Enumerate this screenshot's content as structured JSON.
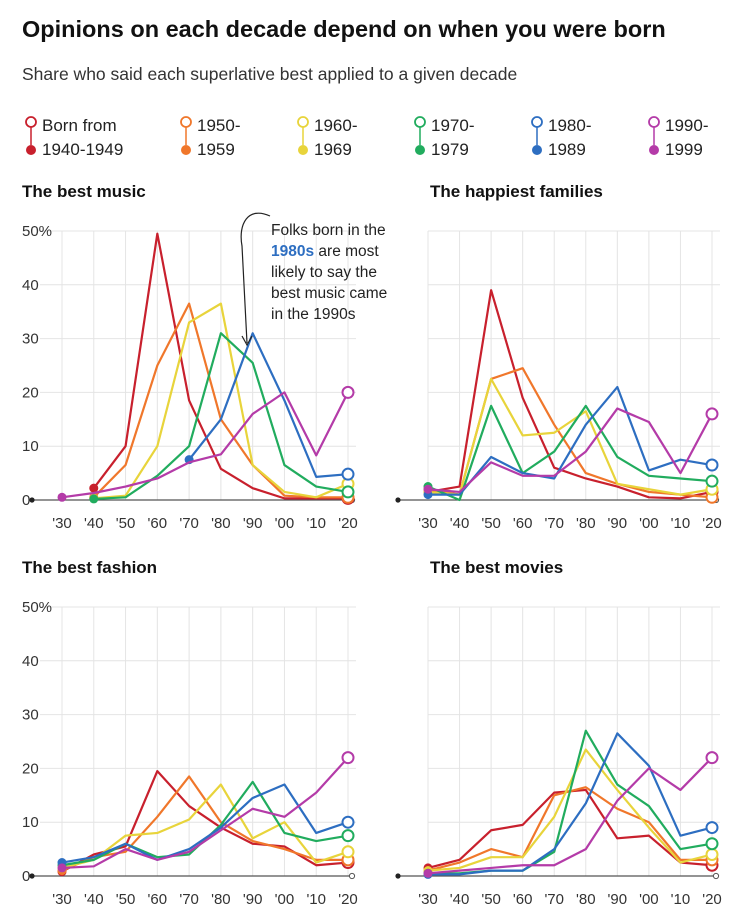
{
  "header": {
    "title": "Opinions on each decade depend on when you were born",
    "subtitle": "Share who said each superlative best applied to a given decade"
  },
  "legend": [
    {
      "name": "Born from",
      "name2": "1940-1949",
      "color": "#c8202d"
    },
    {
      "name": "1950-",
      "name2": "1959",
      "color": "#f0772b"
    },
    {
      "name": "1960-",
      "name2": "1969",
      "color": "#e8d43b"
    },
    {
      "name": "1970-",
      "name2": "1979",
      "color": "#21ac5e"
    },
    {
      "name": "1980-",
      "name2": "1989",
      "color": "#2d6ec1"
    },
    {
      "name": "1990-",
      "name2": "1999",
      "color": "#b43ba8"
    }
  ],
  "annotation": {
    "line1": "Folks born in the",
    "highlight": "1980s",
    "line2_rest": " are most",
    "line3": "likely to say the",
    "line4": "best music came",
    "line5": "in the 1990s"
  },
  "chart_data": [
    {
      "type": "line",
      "title": "The best music",
      "x": [
        "'30",
        "'40",
        "'50",
        "'60",
        "'70",
        "'80",
        "'90",
        "'00",
        "'10",
        "'20"
      ],
      "y_ticks": [
        "50%",
        "40",
        "30",
        "20",
        "10",
        "0"
      ],
      "ylim": [
        0,
        50
      ],
      "grid": true,
      "series": [
        {
          "name": "1940-1949",
          "values": [
            null,
            2.2,
            10,
            49.5,
            18.5,
            5.8,
            2.2,
            0.3,
            0.3,
            0.3
          ]
        },
        {
          "name": "1950-1959",
          "values": [
            null,
            0.5,
            6.5,
            25,
            36.5,
            15,
            6.5,
            0.8,
            0.5,
            0.5
          ]
        },
        {
          "name": "1960-1969",
          "values": [
            null,
            0.3,
            0.8,
            10,
            33,
            36.5,
            6.5,
            1.5,
            0.5,
            3
          ]
        },
        {
          "name": "1970-1979",
          "values": [
            null,
            0.2,
            0.5,
            4.5,
            10,
            31,
            25.5,
            6.5,
            2.5,
            1.5
          ]
        },
        {
          "name": "1980-1989",
          "values": [
            null,
            null,
            null,
            null,
            7.5,
            15,
            31,
            18.5,
            4.3,
            4.8
          ]
        },
        {
          "name": "1990-1999",
          "values": [
            0.5,
            1.3,
            2.5,
            4,
            7,
            8.5,
            16,
            20,
            8.3,
            20
          ]
        }
      ]
    },
    {
      "type": "line",
      "title": "The happiest families",
      "x": [
        "'30",
        "'40",
        "'50",
        "'60",
        "'70",
        "'80",
        "'90",
        "'00",
        "'10",
        "'20"
      ],
      "y_ticks": [
        "50%",
        "40",
        "30",
        "20",
        "10",
        "0"
      ],
      "ylim": [
        0,
        50
      ],
      "grid": true,
      "series": [
        {
          "name": "1940-1949",
          "values": [
            1.5,
            2.5,
            39,
            19,
            6,
            4,
            2.5,
            0.5,
            0.3,
            1.5
          ]
        },
        {
          "name": "1950-1959",
          "values": [
            2,
            1,
            22.5,
            24.5,
            14,
            5,
            3,
            1.5,
            1,
            0.5
          ]
        },
        {
          "name": "1960-1969",
          "values": [
            1.5,
            1,
            22.5,
            12,
            12.5,
            16.5,
            3,
            2,
            1,
            2
          ]
        },
        {
          "name": "1970-1979",
          "values": [
            2.5,
            0,
            17.5,
            5,
            9,
            17.5,
            8,
            4.5,
            4,
            3.5
          ]
        },
        {
          "name": "1980-1989",
          "values": [
            1,
            1,
            8,
            5,
            4,
            14,
            21,
            5.5,
            7.5,
            6.5
          ]
        },
        {
          "name": "1990-1999",
          "values": [
            2,
            1.5,
            7,
            4.5,
            4.5,
            9,
            17,
            14.5,
            5,
            16
          ]
        }
      ]
    },
    {
      "type": "line",
      "title": "The best fashion",
      "x": [
        "'30",
        "'40",
        "'50",
        "'60",
        "'70",
        "'80",
        "'90",
        "'00",
        "'10",
        "'20"
      ],
      "y_ticks": [
        "50%",
        "40",
        "30",
        "20",
        "10",
        "0"
      ],
      "ylim": [
        0,
        50
      ],
      "grid": true,
      "series": [
        {
          "name": "1940-1949",
          "values": [
            0.8,
            4,
            5.5,
            19.5,
            13,
            9,
            6,
            5.5,
            2,
            2.5
          ]
        },
        {
          "name": "1950-1959",
          "values": [
            1,
            3.5,
            4.5,
            11,
            18.5,
            10,
            6.5,
            5,
            3,
            3
          ]
        },
        {
          "name": "1960-1969",
          "values": [
            1.5,
            3,
            7.5,
            8,
            10.5,
            17,
            7,
            10,
            2.5,
            4.5
          ]
        },
        {
          "name": "1970-1979",
          "values": [
            2,
            3,
            6,
            3.5,
            4,
            9.5,
            17.5,
            8,
            6.5,
            7.5
          ]
        },
        {
          "name": "1980-1989",
          "values": [
            2.5,
            3.5,
            6,
            3,
            5,
            9,
            14.5,
            17,
            8,
            10
          ]
        },
        {
          "name": "1990-1999",
          "values": [
            1.5,
            1.8,
            5,
            3,
            4.5,
            8.5,
            12.5,
            11,
            15.5,
            22
          ]
        }
      ]
    },
    {
      "type": "line",
      "title": "The best movies",
      "x": [
        "'30",
        "'40",
        "'50",
        "'60",
        "'70",
        "'80",
        "'90",
        "'00",
        "'10",
        "'20"
      ],
      "y_ticks": [
        "50%",
        "40",
        "30",
        "20",
        "10",
        "0"
      ],
      "ylim": [
        0,
        50
      ],
      "grid": true,
      "series": [
        {
          "name": "1940-1949",
          "values": [
            1.5,
            3,
            8.5,
            9.5,
            15.5,
            16,
            7,
            7.5,
            2.5,
            2
          ]
        },
        {
          "name": "1950-1959",
          "values": [
            1,
            2.5,
            5,
            3.5,
            15,
            16.5,
            12.5,
            10,
            3,
            3
          ]
        },
        {
          "name": "1960-1969",
          "values": [
            1,
            1.5,
            3.5,
            3.5,
            11,
            23.5,
            16,
            9,
            2.5,
            4
          ]
        },
        {
          "name": "1970-1979",
          "values": [
            0.5,
            0.5,
            1,
            1,
            4.5,
            27,
            17,
            13,
            5,
            6
          ]
        },
        {
          "name": "1980-1989",
          "values": [
            0.3,
            0.3,
            1,
            1,
            5,
            13.5,
            26.5,
            20.5,
            7.5,
            9
          ]
        },
        {
          "name": "1990-1999",
          "values": [
            0.5,
            1,
            1.5,
            2,
            2,
            5,
            14,
            20,
            16,
            22
          ]
        }
      ]
    }
  ]
}
